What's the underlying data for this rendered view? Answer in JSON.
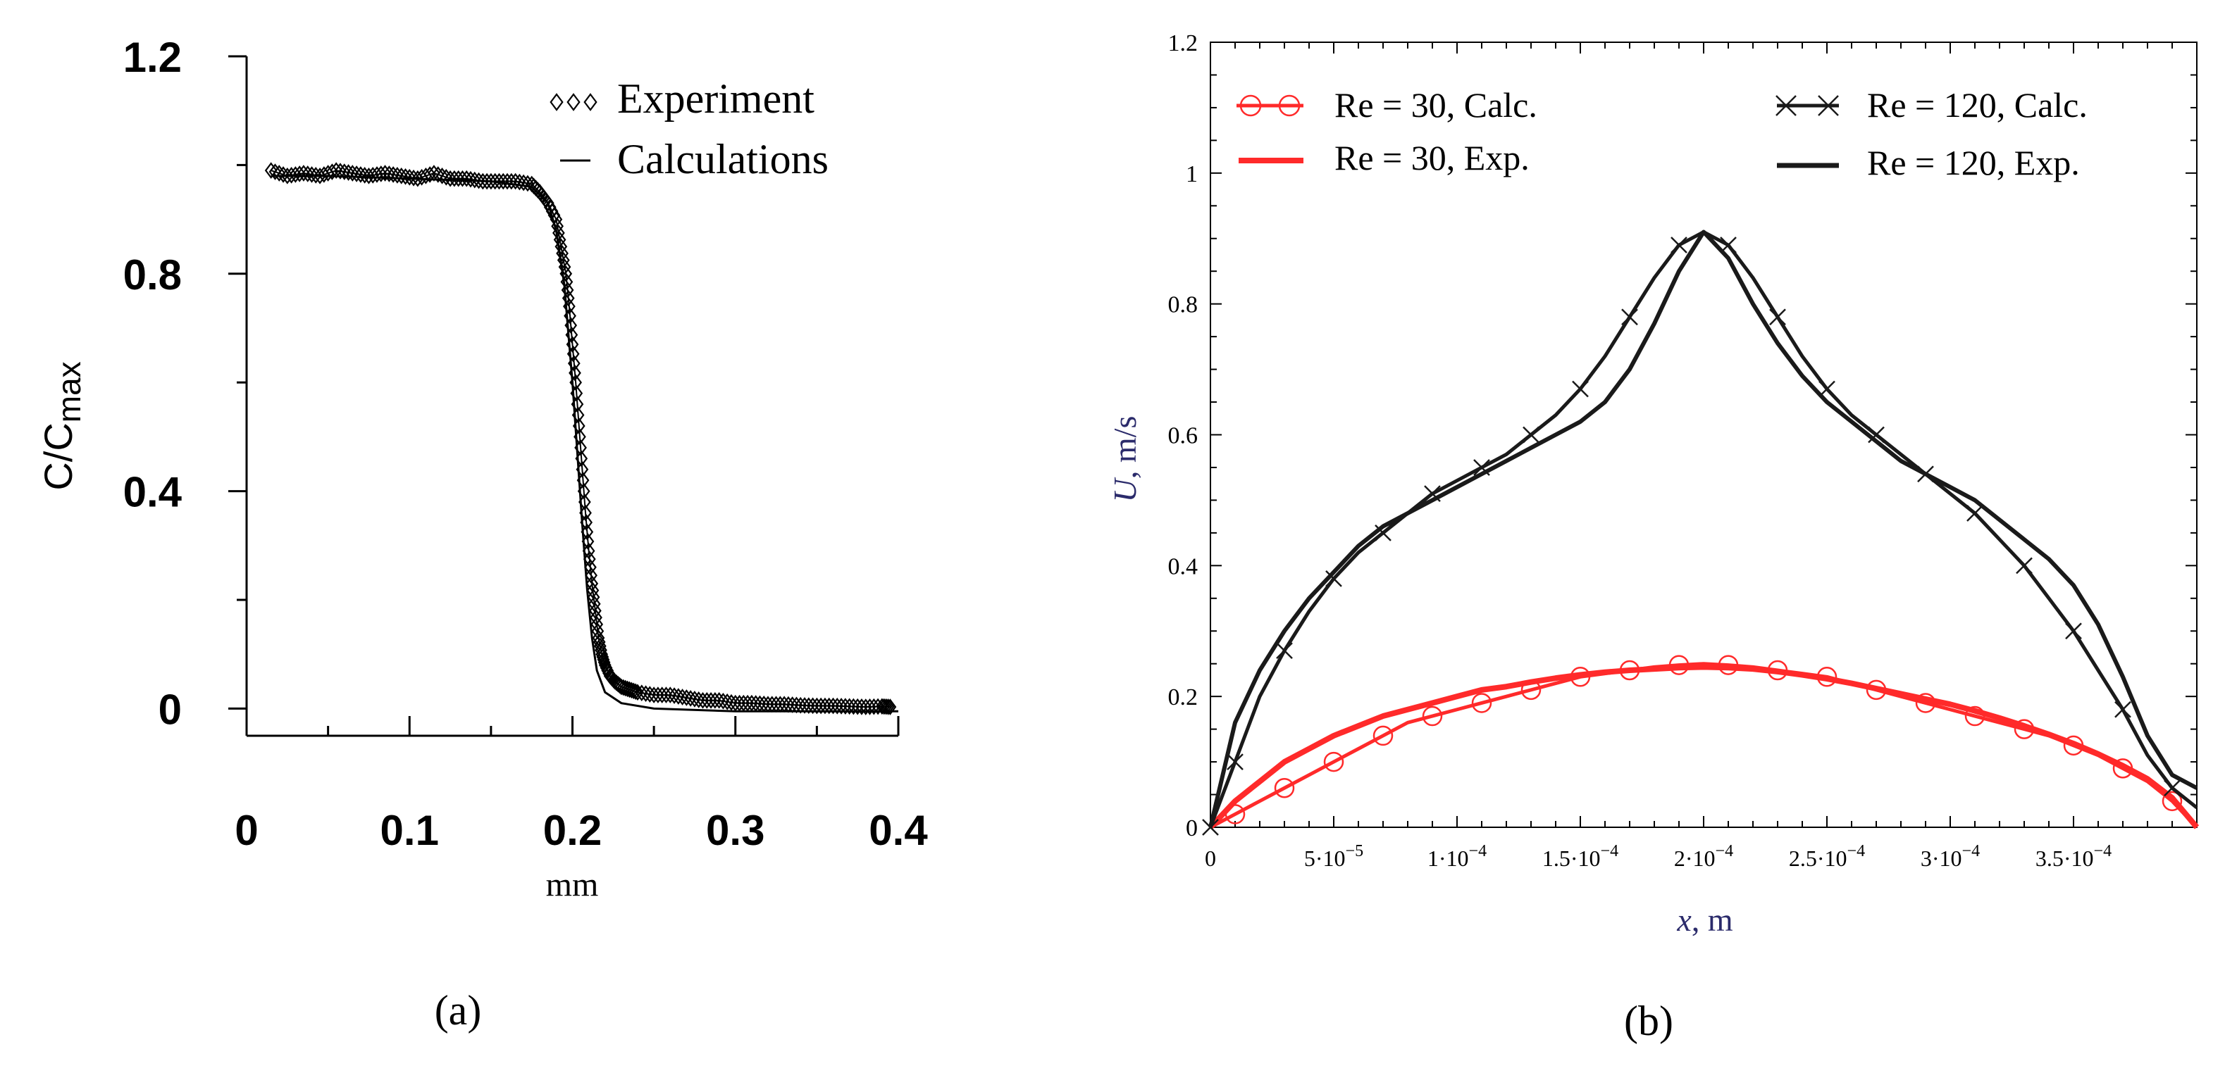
{
  "panels": {
    "a": {
      "caption": "(a)"
    },
    "b": {
      "caption": "(b)"
    }
  },
  "colors": {
    "ink": "#000000",
    "red": "#ff2a2a",
    "dark": "#1a1a1a"
  },
  "chart_data": [
    {
      "id": "a",
      "type": "line",
      "title": "",
      "xlabel": "mm",
      "ylabel": "C/Cmax",
      "ylabel_main": "C/C",
      "ylabel_sub": "max",
      "xlim": [
        0,
        0.4
      ],
      "ylim": [
        -0.05,
        1.2
      ],
      "xticks": [
        0,
        0.1,
        0.2,
        0.3,
        0.4
      ],
      "xtick_labels": [
        "0",
        "0.1",
        "0.2",
        "0.3",
        "0.4"
      ],
      "yticks": [
        0,
        0.4,
        0.8,
        1.2
      ],
      "ytick_labels": [
        "0",
        "0.4",
        "0.8",
        "1.2"
      ],
      "grid": false,
      "legend_position": "top-right",
      "series": [
        {
          "name": "Experiment",
          "marker": "diamond",
          "x": [
            0.015,
            0.025,
            0.035,
            0.045,
            0.055,
            0.065,
            0.075,
            0.085,
            0.095,
            0.105,
            0.115,
            0.125,
            0.135,
            0.145,
            0.155,
            0.165,
            0.175,
            0.18,
            0.185,
            0.19,
            0.193,
            0.196,
            0.198,
            0.2,
            0.202,
            0.204,
            0.206,
            0.208,
            0.21,
            0.212,
            0.214,
            0.216,
            0.218,
            0.22,
            0.223,
            0.226,
            0.23,
            0.235,
            0.24,
            0.25,
            0.26,
            0.27,
            0.28,
            0.29,
            0.3,
            0.31,
            0.32,
            0.33,
            0.34,
            0.35,
            0.36,
            0.37,
            0.38,
            0.39,
            0.395
          ],
          "y": [
            0.99,
            0.98,
            0.985,
            0.98,
            0.99,
            0.985,
            0.98,
            0.985,
            0.98,
            0.975,
            0.985,
            0.975,
            0.975,
            0.97,
            0.97,
            0.97,
            0.965,
            0.95,
            0.93,
            0.9,
            0.85,
            0.8,
            0.74,
            0.67,
            0.6,
            0.52,
            0.44,
            0.36,
            0.29,
            0.23,
            0.18,
            0.13,
            0.1,
            0.08,
            0.06,
            0.05,
            0.04,
            0.035,
            0.03,
            0.025,
            0.025,
            0.02,
            0.015,
            0.015,
            0.01,
            0.01,
            0.008,
            0.008,
            0.006,
            0.005,
            0.005,
            0.004,
            0.003,
            0.004,
            0.003
          ]
        },
        {
          "name": "Calculations",
          "marker": "none",
          "x": [
            0.015,
            0.05,
            0.1,
            0.15,
            0.175,
            0.185,
            0.19,
            0.195,
            0.2,
            0.203,
            0.206,
            0.209,
            0.212,
            0.215,
            0.22,
            0.23,
            0.25,
            0.3,
            0.35,
            0.4
          ],
          "y": [
            0.98,
            0.98,
            0.975,
            0.97,
            0.96,
            0.93,
            0.88,
            0.78,
            0.6,
            0.47,
            0.34,
            0.22,
            0.13,
            0.07,
            0.03,
            0.01,
            0.0,
            -0.005,
            -0.005,
            -0.005
          ]
        }
      ]
    },
    {
      "id": "b",
      "type": "line",
      "title": "",
      "xlabel_var": "x",
      "xlabel_unit": ", m",
      "ylabel_var": "U",
      "ylabel_unit": ", m/s",
      "xlim": [
        0,
        0.0004
      ],
      "ylim": [
        0,
        1.2
      ],
      "xticks": [
        0,
        5e-05,
        0.0001,
        0.00015,
        0.0002,
        0.00025,
        0.0003,
        0.00035
      ],
      "xtick_labels": [
        {
          "base": "0",
          "exp": ""
        },
        {
          "base": "5·10",
          "exp": "−5"
        },
        {
          "base": "1·10",
          "exp": "−4"
        },
        {
          "base": "1.5·10",
          "exp": "−4"
        },
        {
          "base": "2·10",
          "exp": "−4"
        },
        {
          "base": "2.5·10",
          "exp": "−4"
        },
        {
          "base": "3·10",
          "exp": "−4"
        },
        {
          "base": "3.5·10",
          "exp": "−4"
        }
      ],
      "yticks": [
        0,
        0.2,
        0.4,
        0.6,
        0.8,
        1,
        1.2
      ],
      "ytick_labels": [
        "0",
        "0.2",
        "0.4",
        "0.6",
        "0.8",
        "1",
        "1.2"
      ],
      "grid": false,
      "legend_position": "top",
      "series": [
        {
          "name": "Re = 30, Calc.",
          "color": "#ff2a2a",
          "marker": "circle",
          "x": [
            0,
            1e-05,
            2e-05,
            3e-05,
            4e-05,
            5e-05,
            6e-05,
            7e-05,
            8e-05,
            9e-05,
            0.0001,
            0.00011,
            0.00012,
            0.00013,
            0.00014,
            0.00015,
            0.00016,
            0.00017,
            0.00018,
            0.00019,
            0.0002,
            0.00021,
            0.00022,
            0.00023,
            0.00024,
            0.00025,
            0.00026,
            0.00027,
            0.00028,
            0.00029,
            0.0003,
            0.00031,
            0.00032,
            0.00033,
            0.00034,
            0.00035,
            0.00036,
            0.00037,
            0.00038,
            0.00039,
            0.0004
          ],
          "y": [
            0,
            0.02,
            0.04,
            0.06,
            0.08,
            0.1,
            0.12,
            0.14,
            0.16,
            0.17,
            0.18,
            0.19,
            0.2,
            0.21,
            0.22,
            0.23,
            0.235,
            0.24,
            0.245,
            0.248,
            0.25,
            0.248,
            0.245,
            0.24,
            0.235,
            0.23,
            0.22,
            0.21,
            0.2,
            0.19,
            0.18,
            0.17,
            0.16,
            0.15,
            0.14,
            0.125,
            0.11,
            0.09,
            0.07,
            0.04,
            0
          ]
        },
        {
          "name": "Re = 30, Exp.",
          "color": "#ff2a2a",
          "marker": "none",
          "x": [
            0,
            1e-05,
            2e-05,
            3e-05,
            4e-05,
            5e-05,
            6e-05,
            7e-05,
            8e-05,
            9e-05,
            0.0001,
            0.00011,
            0.00012,
            0.00013,
            0.00014,
            0.00015,
            0.00016,
            0.00017,
            0.00018,
            0.00019,
            0.0002,
            0.00021,
            0.00022,
            0.00023,
            0.00024,
            0.00025,
            0.00026,
            0.00027,
            0.00028,
            0.00029,
            0.0003,
            0.00031,
            0.00032,
            0.00033,
            0.00034,
            0.00035,
            0.00036,
            0.00037,
            0.00038,
            0.00039,
            0.0004
          ],
          "y": [
            0,
            0.04,
            0.07,
            0.1,
            0.12,
            0.14,
            0.155,
            0.17,
            0.18,
            0.19,
            0.2,
            0.21,
            0.215,
            0.222,
            0.228,
            0.233,
            0.237,
            0.24,
            0.242,
            0.244,
            0.245,
            0.244,
            0.242,
            0.238,
            0.233,
            0.227,
            0.22,
            0.212,
            0.204,
            0.196,
            0.188,
            0.178,
            0.167,
            0.155,
            0.142,
            0.128,
            0.112,
            0.094,
            0.074,
            0.045,
            0
          ]
        },
        {
          "name": "Re = 120, Calc.",
          "color": "#1a1a1a",
          "marker": "x",
          "x": [
            0,
            1e-05,
            2e-05,
            3e-05,
            4e-05,
            5e-05,
            6e-05,
            7e-05,
            8e-05,
            9e-05,
            0.0001,
            0.00011,
            0.00012,
            0.00013,
            0.00014,
            0.00015,
            0.00016,
            0.00017,
            0.00018,
            0.00019,
            0.0002,
            0.00021,
            0.00022,
            0.00023,
            0.00024,
            0.00025,
            0.00026,
            0.00027,
            0.00028,
            0.00029,
            0.0003,
            0.00031,
            0.00032,
            0.00033,
            0.00034,
            0.00035,
            0.00036,
            0.00037,
            0.00038,
            0.00039,
            0.0004
          ],
          "y": [
            0,
            0.1,
            0.2,
            0.27,
            0.33,
            0.38,
            0.42,
            0.45,
            0.48,
            0.51,
            0.53,
            0.55,
            0.57,
            0.6,
            0.63,
            0.67,
            0.72,
            0.78,
            0.84,
            0.89,
            0.91,
            0.89,
            0.84,
            0.78,
            0.72,
            0.67,
            0.63,
            0.6,
            0.57,
            0.54,
            0.51,
            0.48,
            0.44,
            0.4,
            0.35,
            0.3,
            0.24,
            0.18,
            0.11,
            0.06,
            0.03
          ]
        },
        {
          "name": "Re = 120, Exp.",
          "color": "#1a1a1a",
          "marker": "none",
          "x": [
            0,
            1e-05,
            2e-05,
            3e-05,
            4e-05,
            5e-05,
            6e-05,
            7e-05,
            8e-05,
            9e-05,
            0.0001,
            0.00011,
            0.00012,
            0.00013,
            0.00014,
            0.00015,
            0.00016,
            0.00017,
            0.00018,
            0.00019,
            0.0002,
            0.00021,
            0.00022,
            0.00023,
            0.00024,
            0.00025,
            0.00026,
            0.00027,
            0.00028,
            0.00029,
            0.0003,
            0.00031,
            0.00032,
            0.00033,
            0.00034,
            0.00035,
            0.00036,
            0.00037,
            0.00038,
            0.00039,
            0.0004
          ],
          "y": [
            0,
            0.16,
            0.24,
            0.3,
            0.35,
            0.39,
            0.43,
            0.46,
            0.48,
            0.5,
            0.52,
            0.54,
            0.56,
            0.58,
            0.6,
            0.62,
            0.65,
            0.7,
            0.77,
            0.85,
            0.91,
            0.87,
            0.8,
            0.74,
            0.69,
            0.65,
            0.62,
            0.59,
            0.56,
            0.54,
            0.52,
            0.5,
            0.47,
            0.44,
            0.41,
            0.37,
            0.31,
            0.23,
            0.14,
            0.08,
            0.06
          ]
        }
      ]
    }
  ]
}
